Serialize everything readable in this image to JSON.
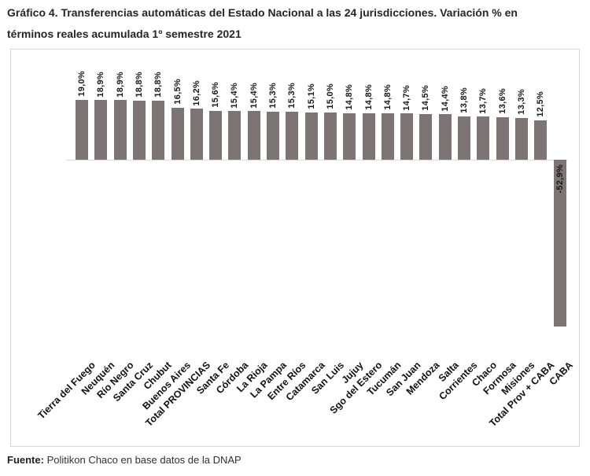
{
  "title_lines": [
    "Gráfico 4. Transferencias automáticas del Estado Nacional a las 24 jurisdicciones. Variación % en",
    "términos reales acumulada 1º semestre 2021"
  ],
  "source": {
    "label": "Fuente:",
    "text": " Politikon Chaco en base datos de la DNAP"
  },
  "chart_data": {
    "type": "bar",
    "title": "Gráfico 4. Transferencias automáticas del Estado Nacional a las 24 jurisdicciones. Variación % en términos reales acumulada 1º semestre 2021",
    "categories": [
      "Tierra del Fuego",
      "Neuquén",
      "Río Negro",
      "Santa Cruz",
      "Chubut",
      "Buenos Aires",
      "Total PROVINCIAS",
      "Santa Fe",
      "Córdoba",
      "La Rioja",
      "La Pampa",
      "Entre Ríos",
      "Catamarca",
      "San Luis",
      "Jujuy",
      "Sgo del Estero",
      "Tucumán",
      "San Juan",
      "Mendoza",
      "Salta",
      "Corrientes",
      "Chaco",
      "Formosa",
      "Misiones",
      "Total Prov + CABA",
      "CABA"
    ],
    "values": [
      19.0,
      18.9,
      18.9,
      18.8,
      18.8,
      16.5,
      16.2,
      15.6,
      15.4,
      15.4,
      15.3,
      15.3,
      15.1,
      15.0,
      14.8,
      14.8,
      14.8,
      14.7,
      14.5,
      14.4,
      13.8,
      13.7,
      13.6,
      13.3,
      12.5,
      -52.9
    ],
    "value_labels": [
      "19,0%",
      "18,9%",
      "18,9%",
      "18,8%",
      "18,8%",
      "16,5%",
      "16,2%",
      "15,6%",
      "15,4%",
      "15,4%",
      "15,3%",
      "15,3%",
      "15,1%",
      "15,0%",
      "14,8%",
      "14,8%",
      "14,8%",
      "14,7%",
      "14,5%",
      "14,4%",
      "13,8%",
      "13,7%",
      "13,6%",
      "13,3%",
      "12,5%",
      "-52,9%"
    ],
    "xlabel": "",
    "ylabel": "",
    "ylim": [
      -55,
      20
    ],
    "grid": false,
    "legend": false,
    "bar_color": "#7c7574",
    "axis_color": "#dddbdb",
    "value_label_rotation_deg": 90,
    "category_label_rotation_deg": 45
  }
}
